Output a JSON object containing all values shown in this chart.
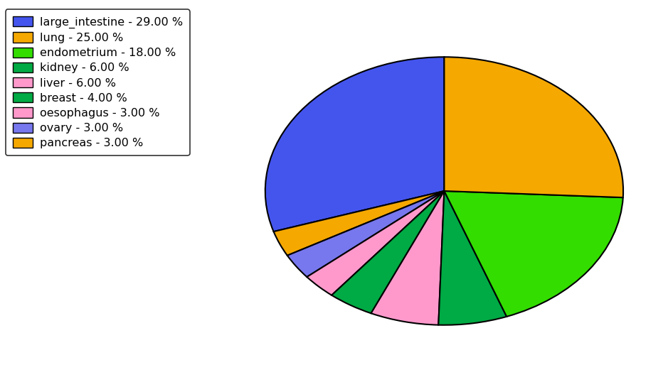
{
  "labels": [
    "large_intestine",
    "pancreas",
    "ovary",
    "oesophagus",
    "breast",
    "liver",
    "kidney",
    "endometrium",
    "lung"
  ],
  "values": [
    29.0,
    3.0,
    3.0,
    3.0,
    4.0,
    6.0,
    6.0,
    18.0,
    25.0
  ],
  "colors": [
    "#4455ee",
    "#f5a800",
    "#7777ee",
    "#ff99cc",
    "#00aa44",
    "#ff99cc",
    "#00aa44",
    "#33dd00",
    "#f5a800"
  ],
  "legend_labels": [
    "large_intestine - 29.00 %",
    "lung - 25.00 %",
    "endometrium - 18.00 %",
    "kidney - 6.00 %",
    "liver - 6.00 %",
    "breast - 4.00 %",
    "oesophagus - 3.00 %",
    "ovary - 3.00 %",
    "pancreas - 3.00 %"
  ],
  "legend_colors": [
    "#4455ee",
    "#f5a800",
    "#33dd00",
    "#00aa44",
    "#ff99cc",
    "#00aa44",
    "#ff99cc",
    "#7777ee",
    "#f5a800"
  ],
  "startangle": 90,
  "figsize": [
    9.39,
    5.38
  ],
  "dpi": 100,
  "legend_fontsize": 11.5
}
